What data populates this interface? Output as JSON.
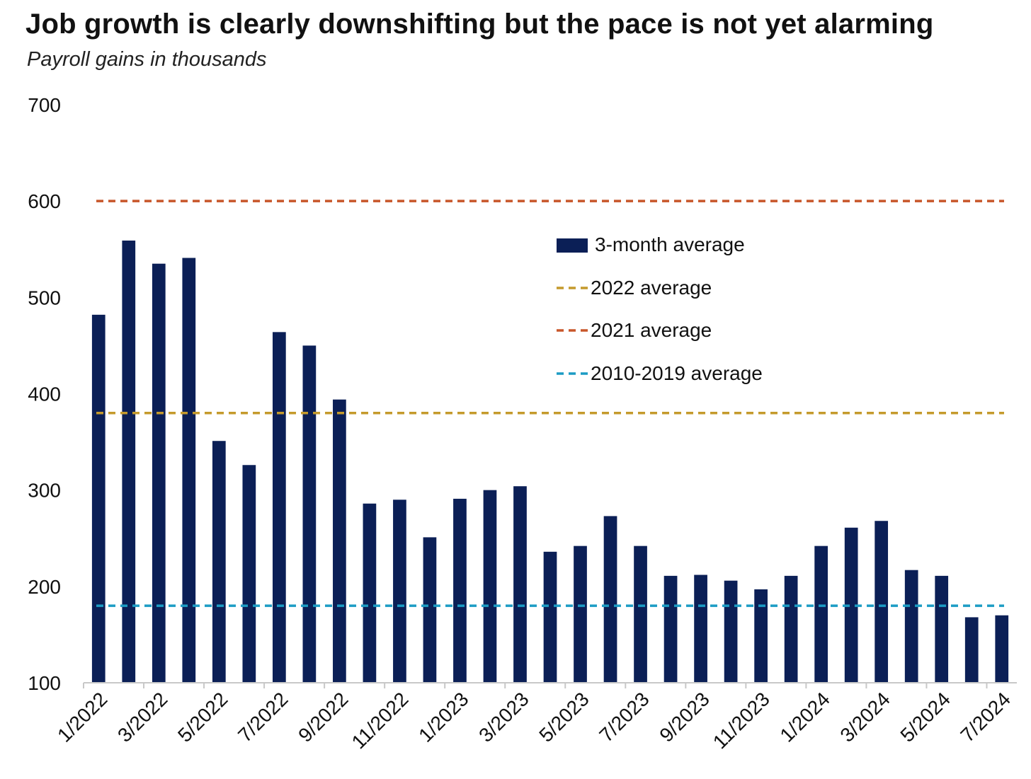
{
  "title": "Job growth is clearly downshifting but the pace is not yet alarming",
  "subtitle": "Payroll gains in thousands",
  "colors": {
    "bar": "#0b1f56",
    "avg_2022": "#c49a2c",
    "avg_2021": "#c8562a",
    "avg_2010_2019": "#1c9cc4",
    "axis": "#c8c8c8"
  },
  "chart_data": {
    "type": "bar",
    "ylim": [
      100,
      700
    ],
    "yticks": [
      100,
      200,
      300,
      400,
      500,
      600,
      700
    ],
    "grid": false,
    "legend_position": "top-right",
    "categories": [
      "1/2022",
      "2/2022",
      "3/2022",
      "4/2022",
      "5/2022",
      "6/2022",
      "7/2022",
      "8/2022",
      "9/2022",
      "10/2022",
      "11/2022",
      "12/2022",
      "1/2023",
      "2/2023",
      "3/2023",
      "4/2023",
      "5/2023",
      "6/2023",
      "7/2023",
      "8/2023",
      "9/2023",
      "10/2023",
      "11/2023",
      "12/2023",
      "1/2024",
      "2/2024",
      "3/2024",
      "4/2024",
      "5/2024",
      "6/2024",
      "7/2024"
    ],
    "x_tick_labels": [
      "1/2022",
      "3/2022",
      "5/2022",
      "7/2022",
      "9/2022",
      "11/2022",
      "1/2023",
      "3/2023",
      "5/2023",
      "7/2023",
      "9/2023",
      "11/2023",
      "1/2024",
      "3/2024",
      "5/2024",
      "7/2024"
    ],
    "series": [
      {
        "name": "3-month average",
        "values": [
          482,
          559,
          535,
          541,
          351,
          326,
          464,
          450,
          394,
          286,
          290,
          251,
          291,
          300,
          304,
          236,
          242,
          273,
          242,
          211,
          212,
          206,
          197,
          211,
          242,
          261,
          268,
          217,
          211,
          168,
          170
        ]
      }
    ],
    "reference_lines": [
      {
        "name": "2022 average",
        "value": 380
      },
      {
        "name": "2021 average",
        "value": 600
      },
      {
        "name": "2010-2019 average",
        "value": 180
      }
    ]
  }
}
